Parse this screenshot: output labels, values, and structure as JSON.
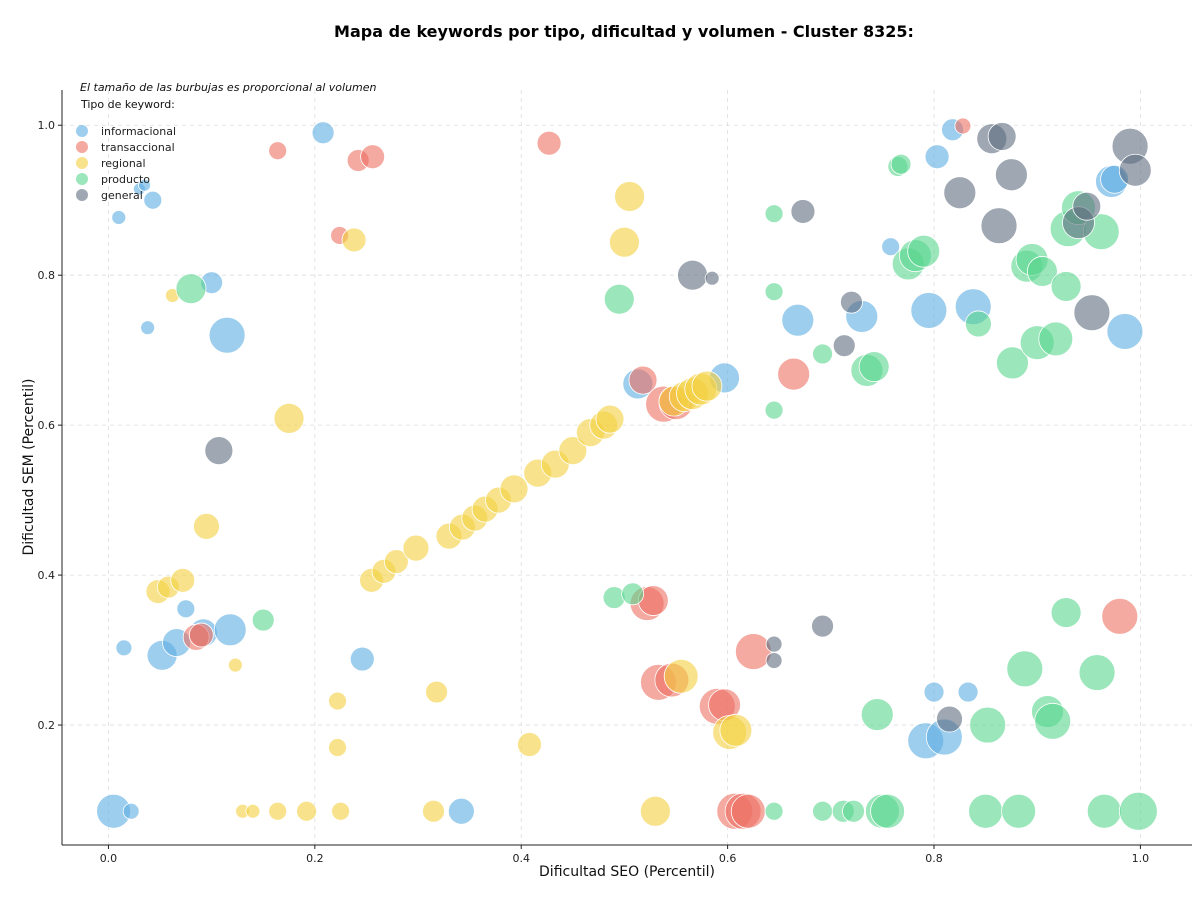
{
  "chart_data": {
    "type": "scatter",
    "title": "Mapa de keywords por tipo, dificultad y volumen - Cluster 8325:",
    "xlabel": "Dificultad SEO (Percentil)",
    "ylabel": "Dificultad SEM (Percentil)",
    "note": "El tamaño de las burbujas es proporcional al volumen",
    "legend_title": "Tipo de keyword:",
    "legend_position": "top-left",
    "grid": true,
    "xlim": [
      -0.045,
      1.05
    ],
    "ylim": [
      0.04,
      1.047
    ],
    "xticks": [
      "0.0",
      "0.2",
      "0.4",
      "0.6",
      "0.8",
      "1.0"
    ],
    "yticks": [
      "0.2",
      "0.4",
      "0.6",
      "0.8",
      "1.0"
    ],
    "series": [
      {
        "name": "informacional",
        "color": "#5dade2",
        "points": [
          {
            "x": 0.005,
            "y": 0.085,
            "r": 17
          },
          {
            "x": 0.022,
            "y": 0.085,
            "r": 8
          },
          {
            "x": 0.03,
            "y": 0.915,
            "r": 6
          },
          {
            "x": 0.035,
            "y": 0.92,
            "r": 6
          },
          {
            "x": 0.043,
            "y": 0.9,
            "r": 9
          },
          {
            "x": 0.01,
            "y": 0.877,
            "r": 7
          },
          {
            "x": 0.038,
            "y": 0.73,
            "r": 7
          },
          {
            "x": 0.015,
            "y": 0.303,
            "r": 8
          },
          {
            "x": 0.052,
            "y": 0.293,
            "r": 15
          },
          {
            "x": 0.066,
            "y": 0.31,
            "r": 14
          },
          {
            "x": 0.075,
            "y": 0.355,
            "r": 9
          },
          {
            "x": 0.092,
            "y": 0.323,
            "r": 14
          },
          {
            "x": 0.118,
            "y": 0.327,
            "r": 16
          },
          {
            "x": 0.1,
            "y": 0.79,
            "r": 11
          },
          {
            "x": 0.115,
            "y": 0.72,
            "r": 18
          },
          {
            "x": 0.208,
            "y": 0.99,
            "r": 11
          },
          {
            "x": 0.246,
            "y": 0.288,
            "r": 12
          },
          {
            "x": 0.342,
            "y": 0.085,
            "r": 13
          },
          {
            "x": 0.513,
            "y": 0.655,
            "r": 15
          },
          {
            "x": 0.597,
            "y": 0.663,
            "r": 15
          },
          {
            "x": 0.668,
            "y": 0.74,
            "r": 16
          },
          {
            "x": 0.73,
            "y": 0.745,
            "r": 16
          },
          {
            "x": 0.758,
            "y": 0.838,
            "r": 9
          },
          {
            "x": 0.795,
            "y": 0.753,
            "r": 18
          },
          {
            "x": 0.803,
            "y": 0.958,
            "r": 12
          },
          {
            "x": 0.818,
            "y": 0.994,
            "r": 11
          },
          {
            "x": 0.838,
            "y": 0.758,
            "r": 18
          },
          {
            "x": 0.8,
            "y": 0.244,
            "r": 10
          },
          {
            "x": 0.833,
            "y": 0.244,
            "r": 10
          },
          {
            "x": 0.792,
            "y": 0.179,
            "r": 18
          },
          {
            "x": 0.81,
            "y": 0.184,
            "r": 18
          },
          {
            "x": 0.972,
            "y": 0.925,
            "r": 16
          },
          {
            "x": 0.975,
            "y": 0.928,
            "r": 14
          },
          {
            "x": 0.985,
            "y": 0.725,
            "r": 18
          }
        ]
      },
      {
        "name": "transaccional",
        "color": "#ec7063",
        "points": [
          {
            "x": 0.164,
            "y": 0.966,
            "r": 9
          },
          {
            "x": 0.242,
            "y": 0.953,
            "r": 11
          },
          {
            "x": 0.256,
            "y": 0.958,
            "r": 12
          },
          {
            "x": 0.224,
            "y": 0.853,
            "r": 9
          },
          {
            "x": 0.085,
            "y": 0.317,
            "r": 13
          },
          {
            "x": 0.09,
            "y": 0.32,
            "r": 12
          },
          {
            "x": 0.427,
            "y": 0.976,
            "r": 12
          },
          {
            "x": 0.518,
            "y": 0.66,
            "r": 14
          },
          {
            "x": 0.538,
            "y": 0.628,
            "r": 18
          },
          {
            "x": 0.55,
            "y": 0.63,
            "r": 17
          },
          {
            "x": 0.522,
            "y": 0.362,
            "r": 17
          },
          {
            "x": 0.528,
            "y": 0.366,
            "r": 15
          },
          {
            "x": 0.533,
            "y": 0.257,
            "r": 18
          },
          {
            "x": 0.546,
            "y": 0.26,
            "r": 17
          },
          {
            "x": 0.59,
            "y": 0.225,
            "r": 18
          },
          {
            "x": 0.597,
            "y": 0.227,
            "r": 16
          },
          {
            "x": 0.607,
            "y": 0.085,
            "r": 18
          },
          {
            "x": 0.615,
            "y": 0.085,
            "r": 18
          },
          {
            "x": 0.62,
            "y": 0.085,
            "r": 17
          },
          {
            "x": 0.625,
            "y": 0.298,
            "r": 18
          },
          {
            "x": 0.664,
            "y": 0.668,
            "r": 16
          },
          {
            "x": 0.828,
            "y": 0.999,
            "r": 8
          },
          {
            "x": 0.98,
            "y": 0.345,
            "r": 18
          }
        ]
      },
      {
        "name": "regional",
        "color": "#f4d03f",
        "points": [
          {
            "x": 0.13,
            "y": 0.085,
            "r": 7
          },
          {
            "x": 0.14,
            "y": 0.085,
            "r": 7
          },
          {
            "x": 0.164,
            "y": 0.085,
            "r": 9
          },
          {
            "x": 0.192,
            "y": 0.085,
            "r": 10
          },
          {
            "x": 0.225,
            "y": 0.085,
            "r": 9
          },
          {
            "x": 0.222,
            "y": 0.232,
            "r": 9
          },
          {
            "x": 0.222,
            "y": 0.17,
            "r": 9
          },
          {
            "x": 0.315,
            "y": 0.085,
            "r": 11
          },
          {
            "x": 0.318,
            "y": 0.244,
            "r": 11
          },
          {
            "x": 0.408,
            "y": 0.174,
            "r": 12
          },
          {
            "x": 0.53,
            "y": 0.085,
            "r": 15
          },
          {
            "x": 0.062,
            "y": 0.773,
            "r": 7
          },
          {
            "x": 0.123,
            "y": 0.28,
            "r": 7
          },
          {
            "x": 0.048,
            "y": 0.378,
            "r": 12
          },
          {
            "x": 0.058,
            "y": 0.384,
            "r": 11
          },
          {
            "x": 0.072,
            "y": 0.393,
            "r": 12
          },
          {
            "x": 0.095,
            "y": 0.465,
            "r": 13
          },
          {
            "x": 0.175,
            "y": 0.609,
            "r": 15
          },
          {
            "x": 0.238,
            "y": 0.847,
            "r": 12
          },
          {
            "x": 0.255,
            "y": 0.393,
            "r": 12
          },
          {
            "x": 0.267,
            "y": 0.405,
            "r": 12
          },
          {
            "x": 0.279,
            "y": 0.418,
            "r": 12
          },
          {
            "x": 0.298,
            "y": 0.436,
            "r": 13
          },
          {
            "x": 0.33,
            "y": 0.452,
            "r": 13
          },
          {
            "x": 0.343,
            "y": 0.464,
            "r": 13
          },
          {
            "x": 0.355,
            "y": 0.476,
            "r": 13
          },
          {
            "x": 0.365,
            "y": 0.488,
            "r": 13
          },
          {
            "x": 0.378,
            "y": 0.5,
            "r": 13
          },
          {
            "x": 0.393,
            "y": 0.515,
            "r": 14
          },
          {
            "x": 0.416,
            "y": 0.536,
            "r": 14
          },
          {
            "x": 0.433,
            "y": 0.548,
            "r": 14
          },
          {
            "x": 0.45,
            "y": 0.566,
            "r": 14
          },
          {
            "x": 0.467,
            "y": 0.59,
            "r": 14
          },
          {
            "x": 0.48,
            "y": 0.6,
            "r": 14
          },
          {
            "x": 0.486,
            "y": 0.608,
            "r": 14
          },
          {
            "x": 0.548,
            "y": 0.632,
            "r": 15
          },
          {
            "x": 0.558,
            "y": 0.638,
            "r": 15
          },
          {
            "x": 0.566,
            "y": 0.642,
            "r": 16
          },
          {
            "x": 0.574,
            "y": 0.648,
            "r": 16
          },
          {
            "x": 0.58,
            "y": 0.652,
            "r": 15
          },
          {
            "x": 0.5,
            "y": 0.844,
            "r": 15
          },
          {
            "x": 0.505,
            "y": 0.905,
            "r": 15
          },
          {
            "x": 0.555,
            "y": 0.265,
            "r": 17
          },
          {
            "x": 0.602,
            "y": 0.19,
            "r": 17
          },
          {
            "x": 0.608,
            "y": 0.193,
            "r": 16
          }
        ]
      },
      {
        "name": "producto",
        "color": "#58d68d",
        "points": [
          {
            "x": 0.08,
            "y": 0.782,
            "r": 15
          },
          {
            "x": 0.15,
            "y": 0.34,
            "r": 11
          },
          {
            "x": 0.49,
            "y": 0.37,
            "r": 11
          },
          {
            "x": 0.508,
            "y": 0.375,
            "r": 11
          },
          {
            "x": 0.495,
            "y": 0.768,
            "r": 15
          },
          {
            "x": 0.645,
            "y": 0.882,
            "r": 9
          },
          {
            "x": 0.645,
            "y": 0.778,
            "r": 9
          },
          {
            "x": 0.645,
            "y": 0.62,
            "r": 9
          },
          {
            "x": 0.645,
            "y": 0.085,
            "r": 9
          },
          {
            "x": 0.692,
            "y": 0.695,
            "r": 10
          },
          {
            "x": 0.692,
            "y": 0.085,
            "r": 10
          },
          {
            "x": 0.712,
            "y": 0.085,
            "r": 11
          },
          {
            "x": 0.722,
            "y": 0.085,
            "r": 11
          },
          {
            "x": 0.735,
            "y": 0.673,
            "r": 16
          },
          {
            "x": 0.742,
            "y": 0.678,
            "r": 15
          },
          {
            "x": 0.745,
            "y": 0.214,
            "r": 16
          },
          {
            "x": 0.75,
            "y": 0.085,
            "r": 17
          },
          {
            "x": 0.755,
            "y": 0.085,
            "r": 17
          },
          {
            "x": 0.765,
            "y": 0.945,
            "r": 10
          },
          {
            "x": 0.768,
            "y": 0.948,
            "r": 10
          },
          {
            "x": 0.775,
            "y": 0.815,
            "r": 16
          },
          {
            "x": 0.782,
            "y": 0.826,
            "r": 16
          },
          {
            "x": 0.79,
            "y": 0.832,
            "r": 16
          },
          {
            "x": 0.843,
            "y": 0.735,
            "r": 13
          },
          {
            "x": 0.852,
            "y": 0.2,
            "r": 18
          },
          {
            "x": 0.85,
            "y": 0.085,
            "r": 17
          },
          {
            "x": 0.876,
            "y": 0.683,
            "r": 16
          },
          {
            "x": 0.882,
            "y": 0.085,
            "r": 17
          },
          {
            "x": 0.888,
            "y": 0.275,
            "r": 18
          },
          {
            "x": 0.89,
            "y": 0.812,
            "r": 16
          },
          {
            "x": 0.895,
            "y": 0.821,
            "r": 16
          },
          {
            "x": 0.905,
            "y": 0.805,
            "r": 15
          },
          {
            "x": 0.9,
            "y": 0.71,
            "r": 17
          },
          {
            "x": 0.918,
            "y": 0.715,
            "r": 17
          },
          {
            "x": 0.91,
            "y": 0.218,
            "r": 16
          },
          {
            "x": 0.915,
            "y": 0.205,
            "r": 18
          },
          {
            "x": 0.928,
            "y": 0.785,
            "r": 15
          },
          {
            "x": 0.928,
            "y": 0.35,
            "r": 15
          },
          {
            "x": 0.93,
            "y": 0.862,
            "r": 18
          },
          {
            "x": 0.94,
            "y": 0.89,
            "r": 17
          },
          {
            "x": 0.958,
            "y": 0.27,
            "r": 18
          },
          {
            "x": 0.962,
            "y": 0.858,
            "r": 18
          },
          {
            "x": 0.965,
            "y": 0.085,
            "r": 17
          },
          {
            "x": 0.998,
            "y": 0.085,
            "r": 19
          }
        ]
      },
      {
        "name": "general",
        "color": "#5d6d7e",
        "points": [
          {
            "x": 0.107,
            "y": 0.566,
            "r": 14
          },
          {
            "x": 0.566,
            "y": 0.8,
            "r": 15
          },
          {
            "x": 0.585,
            "y": 0.796,
            "r": 7
          },
          {
            "x": 0.645,
            "y": 0.308,
            "r": 8
          },
          {
            "x": 0.645,
            "y": 0.286,
            "r": 8
          },
          {
            "x": 0.673,
            "y": 0.885,
            "r": 12
          },
          {
            "x": 0.692,
            "y": 0.332,
            "r": 11
          },
          {
            "x": 0.713,
            "y": 0.706,
            "r": 11
          },
          {
            "x": 0.72,
            "y": 0.764,
            "r": 11
          },
          {
            "x": 0.815,
            "y": 0.208,
            "r": 13
          },
          {
            "x": 0.825,
            "y": 0.91,
            "r": 16
          },
          {
            "x": 0.856,
            "y": 0.982,
            "r": 15
          },
          {
            "x": 0.866,
            "y": 0.985,
            "r": 14
          },
          {
            "x": 0.863,
            "y": 0.866,
            "r": 18
          },
          {
            "x": 0.875,
            "y": 0.934,
            "r": 16
          },
          {
            "x": 0.94,
            "y": 0.87,
            "r": 16
          },
          {
            "x": 0.948,
            "y": 0.892,
            "r": 14
          },
          {
            "x": 0.953,
            "y": 0.75,
            "r": 18
          },
          {
            "x": 0.99,
            "y": 0.972,
            "r": 18
          },
          {
            "x": 0.995,
            "y": 0.94,
            "r": 16
          }
        ]
      }
    ]
  }
}
